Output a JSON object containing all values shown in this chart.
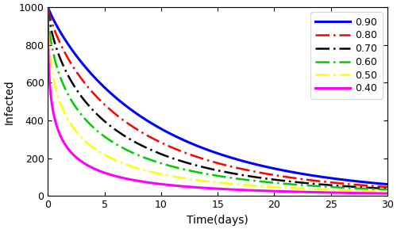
{
  "title": "",
  "xlabel": "Time(days)",
  "ylabel": "Infected",
  "xlim": [
    0,
    30
  ],
  "ylim": [
    0,
    1000
  ],
  "xticks": [
    0,
    5,
    10,
    15,
    20,
    25,
    30
  ],
  "yticks": [
    0,
    200,
    400,
    600,
    800,
    1000
  ],
  "I0": 1000,
  "lam": 0.18,
  "gammas": [
    0.9,
    0.8,
    0.7,
    0.6,
    0.5,
    0.4
  ],
  "line_styles": [
    {
      "color": "#0000FF",
      "linestyle": "solid",
      "linewidth": 2.2,
      "label": "0.90",
      "dash": null
    },
    {
      "color": "#FF0000",
      "linestyle": "dashdot",
      "linewidth": 1.8,
      "label": "0.80",
      "dash": [
        7,
        2,
        1,
        2
      ]
    },
    {
      "color": "#000000",
      "linestyle": "dashdot",
      "linewidth": 1.8,
      "label": "0.70",
      "dash": [
        7,
        2,
        1,
        2
      ]
    },
    {
      "color": "#00CC00",
      "linestyle": "dashdot",
      "linewidth": 1.8,
      "label": "0.60",
      "dash": [
        7,
        2,
        1,
        2
      ]
    },
    {
      "color": "#FFFF00",
      "linestyle": "dashdot",
      "linewidth": 1.8,
      "label": "0.50",
      "dash": [
        7,
        2,
        1,
        2
      ]
    },
    {
      "color": "#FF00FF",
      "linestyle": "solid",
      "linewidth": 2.2,
      "label": "0.40",
      "dash": null
    }
  ],
  "background_color": "#FFFFFF",
  "figsize": [
    5.0,
    2.89
  ],
  "dpi": 100
}
